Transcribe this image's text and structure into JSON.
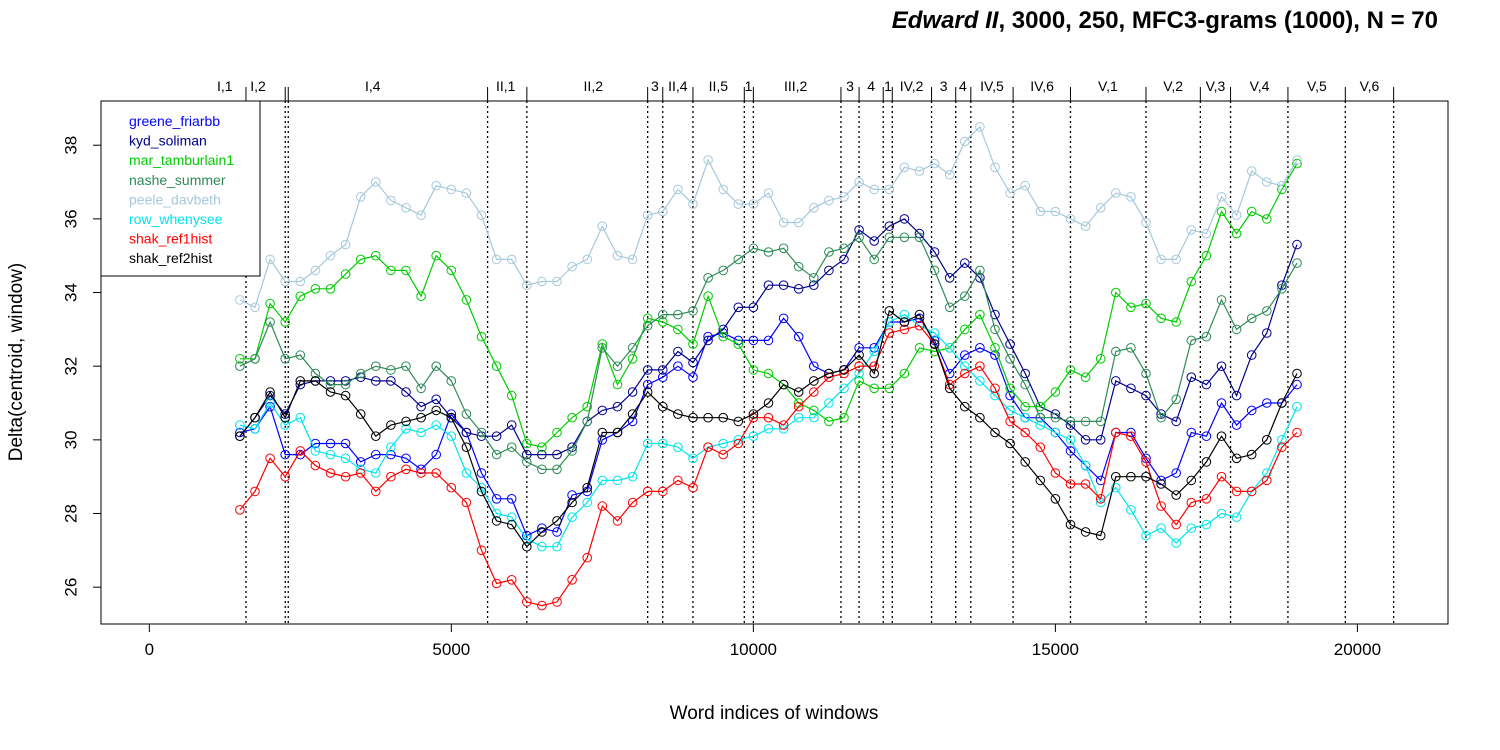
{
  "chart_data": {
    "type": "line",
    "title_italic": "Edward II",
    "title_rest": ", 3000, 250, MFC3-grams (1000), N = 70",
    "xlabel": "Word indices of windows",
    "ylabel": "Delta(centroid, window)",
    "xlim": [
      -800,
      21500
    ],
    "ylim": [
      25,
      39.2
    ],
    "xticks": [
      0,
      5000,
      10000,
      15000,
      20000
    ],
    "yticks": [
      26,
      28,
      30,
      32,
      34,
      36,
      38
    ],
    "legend_position": "top-left",
    "x": [
      1500,
      1750,
      2000,
      2250,
      2500,
      2750,
      3000,
      3250,
      3500,
      3750,
      4000,
      4250,
      4500,
      4750,
      5000,
      5250,
      5500,
      5750,
      6000,
      6250,
      6500,
      6750,
      7000,
      7250,
      7500,
      7750,
      8000,
      8250,
      8500,
      8750,
      9000,
      9250,
      9500,
      9750,
      10000,
      10250,
      10500,
      10750,
      11000,
      11250,
      11500,
      11750,
      12000,
      12250,
      12500,
      12750,
      13000,
      13250,
      13500,
      13750,
      14000,
      14250,
      14500,
      14750,
      15000,
      15250,
      15500,
      15750,
      16000,
      16250,
      16500,
      16750,
      17000,
      17250,
      17500,
      17750,
      18000,
      18250,
      18500,
      18750,
      19000
    ],
    "series": [
      {
        "name": "greene_friarbb",
        "color": "#0000ff",
        "values": [
          30.2,
          30.3,
          30.9,
          29.6,
          29.6,
          29.9,
          29.9,
          29.9,
          29.4,
          29.6,
          29.6,
          29.5,
          29.2,
          29.6,
          30.7,
          30.2,
          29.1,
          28.4,
          28.4,
          27.4,
          27.6,
          27.5,
          28.5,
          28.6,
          30.0,
          30.2,
          30.5,
          31.5,
          31.7,
          32.0,
          31.7,
          32.8,
          32.9,
          32.7,
          32.7,
          32.7,
          33.3,
          32.8,
          32.0,
          31.8,
          31.9,
          32.5,
          32.5,
          33.2,
          33.2,
          33.3,
          32.7,
          31.8,
          32.3,
          32.5,
          32.3,
          31.2,
          30.6,
          30.6,
          30.2,
          29.7,
          29.3,
          28.9,
          30.2,
          30.2,
          29.5,
          28.9,
          29.1,
          30.2,
          30.1,
          31.0,
          30.4,
          30.8,
          31.0,
          31.0,
          31.5
        ]
      },
      {
        "name": "kyd_soliman",
        "color": "#00008b",
        "values": [
          30.1,
          30.6,
          31.2,
          30.7,
          31.5,
          31.6,
          31.6,
          31.6,
          31.7,
          31.6,
          31.6,
          31.3,
          30.9,
          31.1,
          30.6,
          30.2,
          30.1,
          30.1,
          30.4,
          29.6,
          29.6,
          29.6,
          29.8,
          30.5,
          30.8,
          30.9,
          31.3,
          31.9,
          31.9,
          32.4,
          32.1,
          32.7,
          33.0,
          33.6,
          33.6,
          34.2,
          34.2,
          34.1,
          34.2,
          34.6,
          34.9,
          35.7,
          35.4,
          35.8,
          36.0,
          35.6,
          35.1,
          34.4,
          34.8,
          34.4,
          33.4,
          32.6,
          31.8,
          30.9,
          30.7,
          30.4,
          30.0,
          30.0,
          31.6,
          31.4,
          31.2,
          30.7,
          30.5,
          31.7,
          31.5,
          32.0,
          31.2,
          32.3,
          32.9,
          34.2,
          35.3
        ]
      },
      {
        "name": "mar_tamburlain1",
        "color": "#00cc00",
        "values": [
          32.2,
          32.2,
          33.7,
          33.2,
          33.9,
          34.1,
          34.1,
          34.5,
          34.9,
          35.0,
          34.6,
          34.6,
          33.9,
          35.0,
          34.6,
          33.8,
          32.8,
          32.0,
          31.2,
          29.9,
          29.8,
          30.2,
          30.6,
          30.9,
          32.6,
          31.5,
          32.2,
          33.3,
          33.2,
          33.0,
          32.6,
          33.9,
          32.8,
          32.6,
          31.9,
          31.8,
          31.5,
          31.0,
          30.8,
          30.5,
          30.6,
          31.6,
          31.4,
          31.4,
          31.8,
          32.5,
          32.4,
          32.5,
          33.0,
          33.4,
          32.5,
          31.4,
          30.9,
          30.9,
          31.3,
          31.9,
          31.7,
          32.2,
          34.0,
          33.6,
          33.7,
          33.3,
          33.2,
          34.3,
          35.0,
          36.2,
          35.6,
          36.2,
          36.0,
          36.8,
          37.5
        ]
      },
      {
        "name": "nashe_summer",
        "color": "#2e8b57",
        "values": [
          32.0,
          32.2,
          33.2,
          32.2,
          32.3,
          31.8,
          31.5,
          31.5,
          31.8,
          32.0,
          31.9,
          32.0,
          31.4,
          32.0,
          31.6,
          30.7,
          30.2,
          29.6,
          29.8,
          29.4,
          29.2,
          29.2,
          29.7,
          30.5,
          32.5,
          32.0,
          32.5,
          33.1,
          33.4,
          33.4,
          33.5,
          34.4,
          34.6,
          34.9,
          35.2,
          35.1,
          35.2,
          34.7,
          34.4,
          35.1,
          35.2,
          35.5,
          34.9,
          35.5,
          35.5,
          35.5,
          34.6,
          33.6,
          33.9,
          34.6,
          33.0,
          32.2,
          31.5,
          30.6,
          30.6,
          30.5,
          30.5,
          30.5,
          32.4,
          32.5,
          31.8,
          30.6,
          31.1,
          32.7,
          32.8,
          33.8,
          33.0,
          33.3,
          33.5,
          34.1,
          34.8
        ]
      },
      {
        "name": "peele_davbeth",
        "color": "#a6c9dc",
        "values": [
          33.8,
          33.6,
          34.9,
          34.3,
          34.3,
          34.6,
          35.0,
          35.3,
          36.6,
          37.0,
          36.5,
          36.3,
          36.1,
          36.9,
          36.8,
          36.7,
          36.1,
          34.9,
          34.9,
          34.2,
          34.3,
          34.3,
          34.7,
          34.9,
          35.8,
          35.0,
          34.9,
          36.1,
          36.2,
          36.8,
          36.4,
          37.6,
          36.8,
          36.4,
          36.4,
          36.7,
          35.9,
          35.9,
          36.3,
          36.5,
          36.6,
          37.0,
          36.8,
          36.8,
          37.4,
          37.3,
          37.5,
          37.2,
          38.1,
          38.5,
          37.4,
          36.7,
          36.9,
          36.2,
          36.2,
          36.0,
          35.8,
          36.3,
          36.7,
          36.6,
          35.9,
          34.9,
          34.9,
          35.7,
          35.6,
          36.6,
          36.1,
          37.3,
          37.0,
          36.9,
          37.6
        ]
      },
      {
        "name": "row_whenysee",
        "color": "#00e5ee",
        "values": [
          30.4,
          30.3,
          31.0,
          30.4,
          30.6,
          29.7,
          29.6,
          29.5,
          29.2,
          29.1,
          29.8,
          30.3,
          30.2,
          30.4,
          30.1,
          29.1,
          28.7,
          28.0,
          27.9,
          27.3,
          27.1,
          27.1,
          27.9,
          28.3,
          28.9,
          28.9,
          29.0,
          29.9,
          29.9,
          29.8,
          29.5,
          29.8,
          29.9,
          30.0,
          30.1,
          30.3,
          30.3,
          30.6,
          30.6,
          31.0,
          31.4,
          31.8,
          32.4,
          33.2,
          33.4,
          33.1,
          32.9,
          32.5,
          32.0,
          31.6,
          31.2,
          30.8,
          30.6,
          30.4,
          30.2,
          30.0,
          29.3,
          28.3,
          28.7,
          28.1,
          27.4,
          27.6,
          27.2,
          27.6,
          27.7,
          28.0,
          27.9,
          28.6,
          29.1,
          30.0,
          30.9
        ]
      },
      {
        "name": "shak_ref1hist",
        "color": "#ff0000",
        "values": [
          28.1,
          28.6,
          29.5,
          29.0,
          29.7,
          29.3,
          29.1,
          29.0,
          29.1,
          28.6,
          29.0,
          29.2,
          29.1,
          29.1,
          28.7,
          28.3,
          27.0,
          26.1,
          26.2,
          25.6,
          25.5,
          25.6,
          26.2,
          26.8,
          28.2,
          27.8,
          28.3,
          28.6,
          28.6,
          28.9,
          28.7,
          29.8,
          29.6,
          29.9,
          30.6,
          30.6,
          30.4,
          30.9,
          31.3,
          31.7,
          31.8,
          32.0,
          32.0,
          32.9,
          33.0,
          33.1,
          32.6,
          31.5,
          31.8,
          32.0,
          31.4,
          30.5,
          30.2,
          29.8,
          29.1,
          28.8,
          28.8,
          28.4,
          30.2,
          30.1,
          29.4,
          28.2,
          27.7,
          28.3,
          28.4,
          29.0,
          28.6,
          28.6,
          28.9,
          29.8,
          30.2
        ]
      },
      {
        "name": "shak_ref2hist",
        "color": "#000000",
        "values": [
          30.1,
          30.6,
          31.3,
          30.6,
          31.6,
          31.6,
          31.3,
          31.2,
          30.7,
          30.1,
          30.4,
          30.5,
          30.6,
          30.8,
          30.6,
          29.8,
          28.6,
          27.8,
          27.7,
          27.1,
          27.5,
          27.8,
          28.3,
          28.7,
          30.2,
          30.2,
          30.7,
          31.3,
          30.9,
          30.7,
          30.6,
          30.6,
          30.6,
          30.5,
          30.7,
          31.0,
          31.5,
          31.3,
          31.6,
          31.8,
          31.9,
          32.3,
          31.8,
          33.5,
          33.2,
          33.4,
          32.6,
          31.4,
          30.9,
          30.6,
          30.2,
          29.9,
          29.4,
          28.9,
          28.4,
          27.7,
          27.5,
          27.4,
          29.0,
          29.0,
          29.0,
          28.8,
          28.5,
          28.9,
          29.4,
          30.1,
          29.5,
          29.6,
          30.0,
          31.0,
          31.8
        ]
      }
    ],
    "scene_boundaries": [
      1600,
      2250,
      2300,
      5600,
      6250,
      8250,
      8500,
      9000,
      9850,
      10000,
      11450,
      11750,
      12150,
      12300,
      12950,
      13350,
      13600,
      14300,
      15250,
      16500,
      17400,
      17900,
      18850,
      19800,
      20600
    ],
    "scenes": [
      {
        "label": "I,1",
        "x": 1250
      },
      {
        "label": "I,2",
        "x": 1800
      },
      {
        "label": "I,4",
        "x": 3700
      },
      {
        "label": "II,1",
        "x": 5900
      },
      {
        "label": "II,2",
        "x": 7350
      },
      {
        "label": "3",
        "x": 8370
      },
      {
        "label": "II,4",
        "x": 8750
      },
      {
        "label": "II,5",
        "x": 9420
      },
      {
        "label": "1",
        "x": 9920
      },
      {
        "label": "III,2",
        "x": 10700
      },
      {
        "label": "3",
        "x": 11600
      },
      {
        "label": "4",
        "x": 11950
      },
      {
        "label": "1",
        "x": 12230
      },
      {
        "label": "IV,2",
        "x": 12620
      },
      {
        "label": "3",
        "x": 13150
      },
      {
        "label": "4",
        "x": 13470
      },
      {
        "label": "IV,5",
        "x": 13950
      },
      {
        "label": "IV,6",
        "x": 14780
      },
      {
        "label": "V,1",
        "x": 15870
      },
      {
        "label": "V,2",
        "x": 16950
      },
      {
        "label": "V,3",
        "x": 17650
      },
      {
        "label": "V,4",
        "x": 18380
      },
      {
        "label": "V,5",
        "x": 19330
      },
      {
        "label": "V,6",
        "x": 20200
      }
    ]
  }
}
